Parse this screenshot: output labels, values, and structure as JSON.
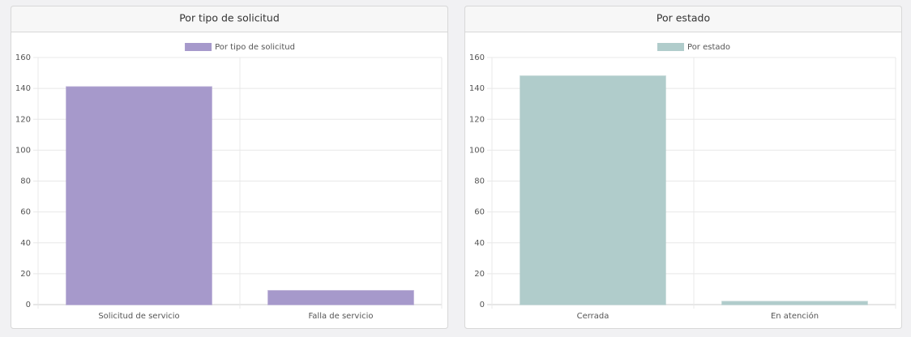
{
  "chart_data": [
    {
      "type": "bar",
      "title": "Por tipo de solicitud",
      "categories": [
        "Solicitud de servicio",
        "Falla de servicio"
      ],
      "series": [
        {
          "name": "Por tipo de solicitud",
          "color": "#a699cb",
          "values": [
            141,
            9
          ]
        }
      ],
      "ylim": [
        0,
        160
      ],
      "yticks": [
        0,
        20,
        40,
        60,
        80,
        100,
        120,
        140,
        160
      ],
      "grid": true
    },
    {
      "type": "bar",
      "title": "Por estado",
      "categories": [
        "Cerrada",
        "En atención"
      ],
      "series": [
        {
          "name": "Por estado",
          "color": "#b0cccb",
          "values": [
            148,
            2
          ]
        }
      ],
      "ylim": [
        0,
        160
      ],
      "yticks": [
        0,
        20,
        40,
        60,
        80,
        100,
        120,
        140,
        160
      ],
      "grid": true
    }
  ]
}
